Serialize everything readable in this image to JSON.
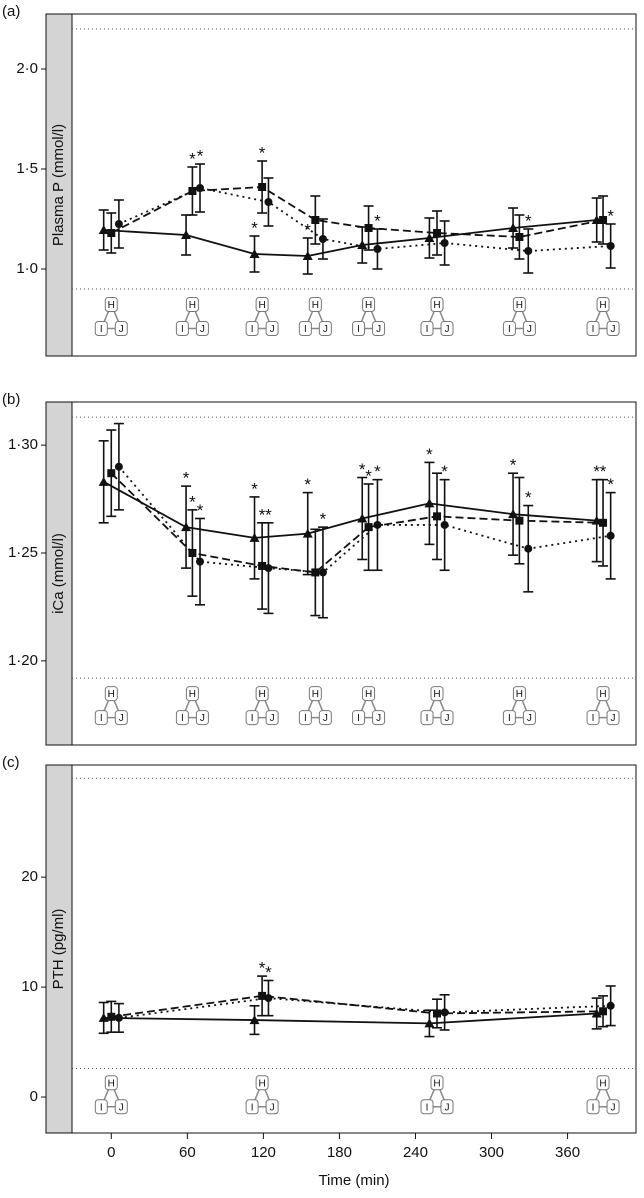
{
  "chart_data": [
    {
      "type": "line",
      "panel_label": "(a)",
      "ylabel": "Plasma P (mmol/l)",
      "xlim": [
        -31,
        414
      ],
      "ylim": [
        0.565,
        2.275
      ],
      "yticks": [
        {
          "value": 1.0,
          "label": "1·0"
        },
        {
          "value": 1.5,
          "label": "1·5"
        },
        {
          "value": 2.0,
          "label": "2·0"
        }
      ],
      "ref_lines": [
        0.9,
        2.2
      ],
      "icon_labels": [
        "H",
        "I",
        "J"
      ],
      "asterisk": "*",
      "series": [
        {
          "marker": "triangle",
          "dash": "solid",
          "color": "#111111",
          "x": [
            -6,
            59,
            113,
            155,
            198,
            251,
            317,
            383
          ],
          "values": [
            1.195,
            1.17,
            1.075,
            1.065,
            1.12,
            1.155,
            1.205,
            1.245
          ],
          "errors": [
            0.1,
            0.1,
            0.09,
            0.09,
            0.09,
            0.1,
            0.1,
            0.11
          ],
          "starred": [
            2,
            3
          ]
        },
        {
          "marker": "square",
          "dash": "dashed",
          "color": "#111111",
          "x": [
            0,
            64,
            119,
            161,
            203,
            257,
            322,
            388
          ],
          "values": [
            1.18,
            1.39,
            1.41,
            1.245,
            1.205,
            1.18,
            1.16,
            1.245
          ],
          "errors": [
            0.1,
            0.12,
            0.13,
            0.12,
            0.11,
            0.11,
            0.11,
            0.12
          ],
          "starred": [
            1,
            2
          ]
        },
        {
          "marker": "circle",
          "dash": "dotted",
          "color": "#111111",
          "x": [
            6,
            70,
            124,
            167,
            210,
            263,
            329,
            394
          ],
          "values": [
            1.225,
            1.405,
            1.335,
            1.15,
            1.1,
            1.13,
            1.09,
            1.115
          ],
          "errors": [
            0.12,
            0.12,
            0.12,
            0.1,
            0.1,
            0.11,
            0.11,
            0.11
          ],
          "starred": [
            1,
            4,
            6,
            7
          ]
        }
      ]
    },
    {
      "type": "line",
      "panel_label": "(b)",
      "ylabel": "iCa (mmol/l)",
      "xlim": [
        -31,
        414
      ],
      "ylim": [
        1.161,
        1.32
      ],
      "yticks": [
        {
          "value": 1.2,
          "label": "1·20"
        },
        {
          "value": 1.25,
          "label": "1·25"
        },
        {
          "value": 1.3,
          "label": "1·30"
        }
      ],
      "ref_lines": [
        1.192,
        1.313
      ],
      "icon_labels": [
        "H",
        "I",
        "J"
      ],
      "asterisk": "*",
      "series": [
        {
          "marker": "triangle",
          "dash": "solid",
          "color": "#111111",
          "x": [
            -6,
            59,
            113,
            155,
            198,
            251,
            317,
            383
          ],
          "values": [
            1.283,
            1.262,
            1.257,
            1.259,
            1.266,
            1.273,
            1.268,
            1.265
          ],
          "errors": [
            0.019,
            0.019,
            0.019,
            0.019,
            0.019,
            0.019,
            0.019,
            0.019
          ],
          "starred": [
            1,
            2,
            3,
            4,
            5,
            6,
            7
          ]
        },
        {
          "marker": "square",
          "dash": "dashed",
          "color": "#111111",
          "x": [
            0,
            64,
            119,
            161,
            203,
            257,
            322,
            388
          ],
          "values": [
            1.287,
            1.25,
            1.244,
            1.241,
            1.262,
            1.267,
            1.265,
            1.264
          ],
          "errors": [
            0.02,
            0.02,
            0.02,
            0.02,
            0.02,
            0.02,
            0.02,
            0.02
          ],
          "starred": [
            1,
            2,
            4,
            7
          ]
        },
        {
          "marker": "circle",
          "dash": "dotted",
          "color": "#111111",
          "x": [
            6,
            70,
            124,
            167,
            210,
            263,
            329,
            394
          ],
          "values": [
            1.29,
            1.246,
            1.243,
            1.241,
            1.263,
            1.263,
            1.252,
            1.258
          ],
          "errors": [
            0.02,
            0.02,
            0.021,
            0.021,
            0.021,
            0.021,
            0.02,
            0.02
          ],
          "starred": [
            1,
            2,
            3,
            4,
            5,
            6,
            7
          ]
        }
      ]
    },
    {
      "type": "line",
      "panel_label": "(c)",
      "ylabel": "PTH (pg/ml)",
      "xlabel": "Time (min)",
      "xlim": [
        -31,
        414
      ],
      "ylim": [
        -3.27,
        30.2
      ],
      "xticks": [
        0,
        60,
        120,
        180,
        240,
        300,
        360
      ],
      "yticks": [
        0,
        10,
        20
      ],
      "ref_lines": [
        2.6,
        29
      ],
      "icon_labels": [
        "H",
        "I",
        "J"
      ],
      "asterisk": "*",
      "series": [
        {
          "marker": "triangle",
          "dash": "solid",
          "color": "#111111",
          "x": [
            -6,
            113,
            251,
            383
          ],
          "values": [
            7.2,
            7.0,
            6.7,
            7.6
          ],
          "errors": [
            1.4,
            1.3,
            1.2,
            1.4
          ],
          "starred": []
        },
        {
          "marker": "square",
          "dash": "dashed",
          "color": "#111111",
          "x": [
            0,
            119,
            257,
            388
          ],
          "values": [
            7.3,
            9.2,
            7.6,
            7.8
          ],
          "errors": [
            1.4,
            1.8,
            1.3,
            1.4
          ],
          "starred": [
            1
          ]
        },
        {
          "marker": "circle",
          "dash": "dotted",
          "color": "#111111",
          "x": [
            6,
            124,
            263,
            394
          ],
          "values": [
            7.2,
            9.0,
            7.7,
            8.3
          ],
          "errors": [
            1.3,
            1.6,
            1.6,
            1.8
          ],
          "starred": [
            1
          ]
        }
      ]
    }
  ]
}
